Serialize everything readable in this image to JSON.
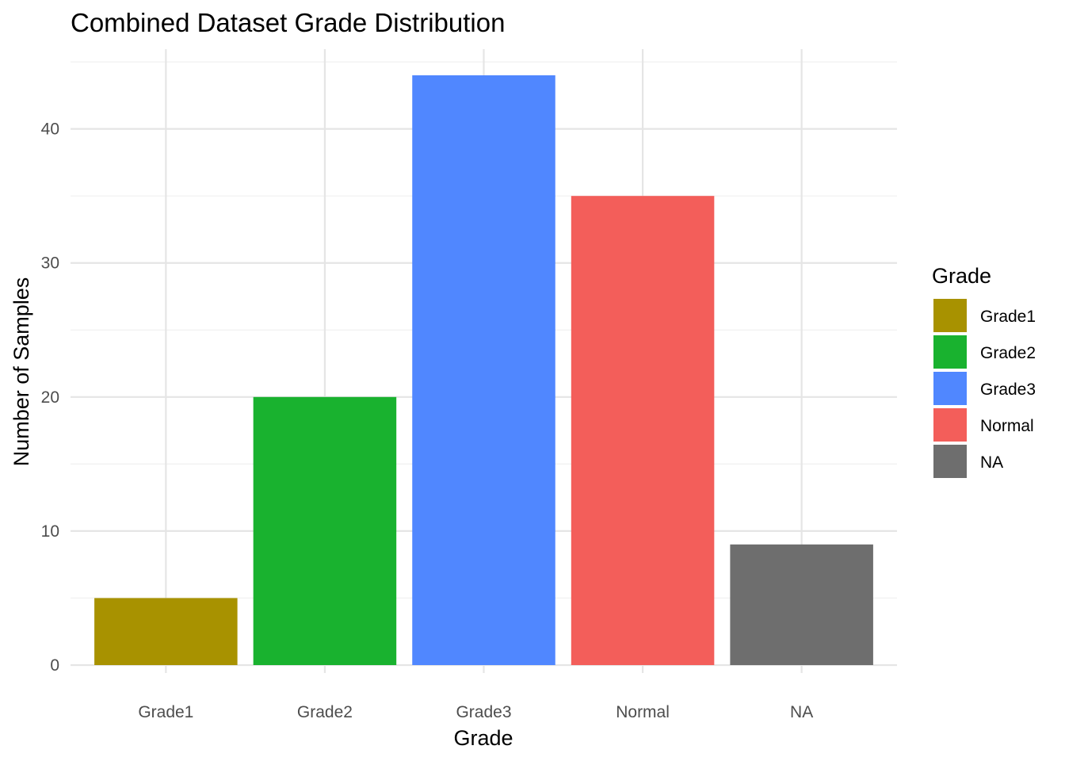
{
  "chart_data": {
    "type": "bar",
    "title": "Combined Dataset Grade Distribution",
    "xlabel": "Grade",
    "ylabel": "Number of Samples",
    "categories": [
      "Grade1",
      "Grade2",
      "Grade3",
      "Normal",
      "NA"
    ],
    "values": [
      5,
      20,
      44,
      35,
      9
    ],
    "colors": [
      "#A89200",
      "#19B22F",
      "#5087FF",
      "#F35E5A",
      "#6E6E6E"
    ],
    "ylim": [
      0,
      46
    ],
    "yticks": [
      0,
      10,
      20,
      30,
      40
    ],
    "grid": true,
    "legend": {
      "title": "Grade",
      "position": "right",
      "entries": [
        "Grade1",
        "Grade2",
        "Grade3",
        "Normal",
        "NA"
      ]
    }
  }
}
